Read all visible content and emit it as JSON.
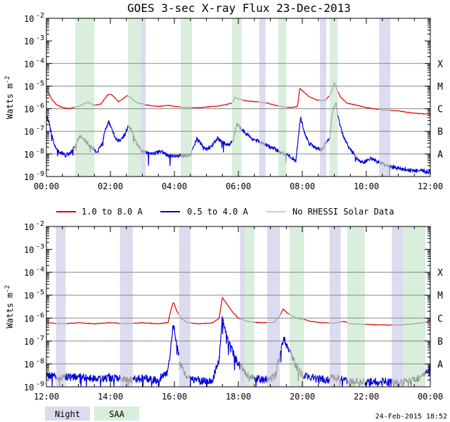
{
  "colors": {
    "long": "#dd0000",
    "short": "#0000dd",
    "norhessi": "#999999",
    "night": "#dcdcef",
    "saa": "#d9eedc",
    "grid": "#888888"
  },
  "chart_data": {
    "type": "line",
    "title": "GOES 3-sec X-ray Flux   23-Dec-2013",
    "ylabel": "Watts m",
    "ylabel_exp": "-2",
    "yscale": "log",
    "ylim_exp": [
      -9,
      -2
    ],
    "ytick_labels": [
      {
        "exp": -2,
        "text": "10",
        "sup": "-2"
      },
      {
        "exp": -3,
        "text": "10",
        "sup": "-3"
      },
      {
        "exp": -4,
        "text": "10",
        "sup": "-4"
      },
      {
        "exp": -5,
        "text": "10",
        "sup": "-5"
      },
      {
        "exp": -6,
        "text": "10",
        "sup": "-6"
      },
      {
        "exp": -7,
        "text": "10",
        "sup": "-7"
      },
      {
        "exp": -8,
        "text": "10",
        "sup": "-8"
      },
      {
        "exp": -9,
        "text": "10",
        "sup": "-9"
      }
    ],
    "flare_classes": [
      {
        "label": "X",
        "exp": -4
      },
      {
        "label": "M",
        "exp": -5
      },
      {
        "label": "C",
        "exp": -6
      },
      {
        "label": "B",
        "exp": -7
      },
      {
        "label": "A",
        "exp": -8
      }
    ],
    "legend": [
      {
        "key": "long",
        "label": "1.0 to 8.0 A"
      },
      {
        "key": "short",
        "label": "0.5 to 4.0 A"
      },
      {
        "key": "norhessi",
        "label": "No RHESSI Solar Data"
      }
    ],
    "bottom_legend": [
      {
        "key": "night",
        "label": "Night"
      },
      {
        "key": "saa",
        "label": "SAA"
      }
    ],
    "footer": "24-Feb-2015 18:52",
    "panels": [
      {
        "x_range_h": [
          0,
          12
        ],
        "xtick_labels": [
          "00:00",
          "02:00",
          "04:00",
          "06:00",
          "08:00",
          "10:00",
          "12:00"
        ],
        "night": [
          [
            1.07,
            1.27
          ],
          [
            2.9,
            3.1
          ],
          [
            6.65,
            6.85
          ],
          [
            8.55,
            8.75
          ],
          [
            10.4,
            10.75
          ]
        ],
        "saa": [
          [
            0.9,
            1.5
          ],
          [
            2.55,
            2.95
          ],
          [
            4.2,
            4.55
          ],
          [
            5.8,
            6.1
          ],
          [
            7.25,
            7.5
          ],
          [
            8.85,
            9.1
          ]
        ],
        "long_series": [
          [
            0.0,
            -5.2
          ],
          [
            0.08,
            -5.3
          ],
          [
            0.15,
            -5.55
          ],
          [
            0.3,
            -5.8
          ],
          [
            0.5,
            -5.95
          ],
          [
            0.7,
            -6.0
          ],
          [
            1.0,
            -5.9
          ],
          [
            1.3,
            -5.7
          ],
          [
            1.5,
            -5.85
          ],
          [
            1.7,
            -5.8
          ],
          [
            1.8,
            -5.6
          ],
          [
            1.9,
            -5.4
          ],
          [
            2.0,
            -5.35
          ],
          [
            2.1,
            -5.45
          ],
          [
            2.25,
            -5.7
          ],
          [
            2.45,
            -5.5
          ],
          [
            2.55,
            -5.4
          ],
          [
            2.7,
            -5.6
          ],
          [
            2.85,
            -5.75
          ],
          [
            3.2,
            -5.85
          ],
          [
            3.5,
            -5.9
          ],
          [
            3.8,
            -5.85
          ],
          [
            4.0,
            -5.9
          ],
          [
            4.4,
            -5.95
          ],
          [
            4.8,
            -5.95
          ],
          [
            5.2,
            -5.9
          ],
          [
            5.5,
            -5.85
          ],
          [
            5.8,
            -5.75
          ],
          [
            5.9,
            -5.5
          ],
          [
            6.0,
            -5.55
          ],
          [
            6.2,
            -5.65
          ],
          [
            6.6,
            -5.7
          ],
          [
            6.9,
            -5.75
          ],
          [
            7.3,
            -5.9
          ],
          [
            7.6,
            -5.95
          ],
          [
            7.85,
            -5.9
          ],
          [
            7.92,
            -5.1
          ],
          [
            8.0,
            -5.2
          ],
          [
            8.2,
            -5.45
          ],
          [
            8.4,
            -5.6
          ],
          [
            8.6,
            -5.65
          ],
          [
            8.75,
            -5.6
          ],
          [
            8.9,
            -5.3
          ],
          [
            9.0,
            -4.85
          ],
          [
            9.1,
            -5.2
          ],
          [
            9.2,
            -5.5
          ],
          [
            9.4,
            -5.75
          ],
          [
            9.7,
            -5.85
          ],
          [
            10.0,
            -5.95
          ],
          [
            10.5,
            -6.05
          ],
          [
            11.0,
            -6.1
          ],
          [
            11.5,
            -6.2
          ],
          [
            12.0,
            -6.25
          ]
        ],
        "short_series": [
          [
            0.0,
            -6.3
          ],
          [
            0.08,
            -6.6
          ],
          [
            0.15,
            -7.1
          ],
          [
            0.25,
            -7.6
          ],
          [
            0.4,
            -7.9
          ],
          [
            0.6,
            -8.05
          ],
          [
            0.8,
            -7.9
          ],
          [
            0.95,
            -7.5
          ],
          [
            1.05,
            -7.2
          ],
          [
            1.2,
            -7.4
          ],
          [
            1.4,
            -7.7
          ],
          [
            1.6,
            -7.9
          ],
          [
            1.75,
            -7.5
          ],
          [
            1.85,
            -6.9
          ],
          [
            1.95,
            -6.6
          ],
          [
            2.05,
            -6.9
          ],
          [
            2.2,
            -7.4
          ],
          [
            2.4,
            -7.3
          ],
          [
            2.55,
            -6.8
          ],
          [
            2.65,
            -6.95
          ],
          [
            2.8,
            -7.5
          ],
          [
            3.0,
            -7.9
          ],
          [
            3.3,
            -8.0
          ],
          [
            3.6,
            -7.9
          ],
          [
            3.8,
            -8.05
          ],
          [
            4.1,
            -8.1
          ],
          [
            4.5,
            -8.05
          ],
          [
            4.6,
            -7.7
          ],
          [
            4.7,
            -7.3
          ],
          [
            4.85,
            -7.6
          ],
          [
            5.0,
            -7.8
          ],
          [
            5.2,
            -7.6
          ],
          [
            5.35,
            -7.3
          ],
          [
            5.5,
            -7.5
          ],
          [
            5.7,
            -7.6
          ],
          [
            5.85,
            -7.35
          ],
          [
            5.95,
            -6.7
          ],
          [
            6.1,
            -6.9
          ],
          [
            6.4,
            -7.3
          ],
          [
            6.7,
            -7.5
          ],
          [
            7.0,
            -7.7
          ],
          [
            7.3,
            -7.9
          ],
          [
            7.6,
            -8.1
          ],
          [
            7.8,
            -8.3
          ],
          [
            7.9,
            -6.9
          ],
          [
            7.95,
            -6.4
          ],
          [
            8.05,
            -7.0
          ],
          [
            8.2,
            -7.5
          ],
          [
            8.4,
            -7.7
          ],
          [
            8.6,
            -7.8
          ],
          [
            8.85,
            -7.3
          ],
          [
            8.95,
            -6.1
          ],
          [
            9.05,
            -5.75
          ],
          [
            9.15,
            -6.6
          ],
          [
            9.3,
            -7.3
          ],
          [
            9.5,
            -7.8
          ],
          [
            9.7,
            -8.2
          ],
          [
            9.9,
            -8.4
          ],
          [
            10.1,
            -8.2
          ],
          [
            10.3,
            -8.3
          ],
          [
            10.6,
            -8.5
          ],
          [
            11.0,
            -8.65
          ],
          [
            11.3,
            -8.7
          ],
          [
            11.6,
            -8.75
          ],
          [
            12.0,
            -8.8
          ]
        ]
      },
      {
        "x_range_h": [
          12,
          24
        ],
        "xtick_labels": [
          "12:00",
          "14:00",
          "16:00",
          "18:00",
          "20:00",
          "22:00",
          "00:00"
        ],
        "night": [
          [
            12.3,
            12.6
          ],
          [
            14.3,
            14.7
          ],
          [
            16.15,
            16.5
          ],
          [
            18.05,
            18.5
          ],
          [
            18.9,
            19.3
          ],
          [
            20.85,
            21.2
          ],
          [
            22.8,
            23.15
          ]
        ],
        "saa": [
          [
            18.2,
            18.5
          ],
          [
            19.6,
            20.05
          ],
          [
            21.4,
            21.95
          ],
          [
            23.15,
            23.85
          ]
        ],
        "long_series": [
          [
            12.0,
            -6.2
          ],
          [
            12.5,
            -6.25
          ],
          [
            13.0,
            -6.2
          ],
          [
            13.5,
            -6.25
          ],
          [
            14.0,
            -6.2
          ],
          [
            14.5,
            -6.25
          ],
          [
            15.0,
            -6.2
          ],
          [
            15.5,
            -6.25
          ],
          [
            15.8,
            -6.2
          ],
          [
            15.9,
            -5.6
          ],
          [
            15.97,
            -5.3
          ],
          [
            16.05,
            -5.6
          ],
          [
            16.2,
            -6.0
          ],
          [
            16.4,
            -6.2
          ],
          [
            16.8,
            -6.25
          ],
          [
            17.2,
            -6.2
          ],
          [
            17.4,
            -6.0
          ],
          [
            17.5,
            -5.1
          ],
          [
            17.6,
            -5.3
          ],
          [
            17.8,
            -5.7
          ],
          [
            18.0,
            -6.0
          ],
          [
            18.3,
            -6.15
          ],
          [
            18.7,
            -6.2
          ],
          [
            19.1,
            -6.2
          ],
          [
            19.3,
            -5.9
          ],
          [
            19.4,
            -5.6
          ],
          [
            19.55,
            -5.8
          ],
          [
            19.8,
            -6.0
          ],
          [
            20.0,
            -6.05
          ],
          [
            20.3,
            -6.15
          ],
          [
            20.6,
            -6.2
          ],
          [
            21.0,
            -6.22
          ],
          [
            21.3,
            -6.15
          ],
          [
            21.5,
            -6.25
          ],
          [
            22.0,
            -6.28
          ],
          [
            22.5,
            -6.3
          ],
          [
            23.0,
            -6.3
          ],
          [
            23.5,
            -6.25
          ],
          [
            24.0,
            -6.15
          ]
        ],
        "short_series": [
          [
            12.0,
            -8.5
          ],
          [
            12.5,
            -8.6
          ],
          [
            13.0,
            -8.55
          ],
          [
            13.5,
            -8.65
          ],
          [
            14.0,
            -8.6
          ],
          [
            14.5,
            -8.7
          ],
          [
            15.0,
            -8.65
          ],
          [
            15.5,
            -8.7
          ],
          [
            15.8,
            -8.3
          ],
          [
            15.9,
            -7.2
          ],
          [
            15.97,
            -6.2
          ],
          [
            16.05,
            -7.0
          ],
          [
            16.2,
            -8.0
          ],
          [
            16.4,
            -8.6
          ],
          [
            16.8,
            -8.75
          ],
          [
            17.2,
            -8.7
          ],
          [
            17.4,
            -7.8
          ],
          [
            17.5,
            -6.0
          ],
          [
            17.6,
            -6.6
          ],
          [
            17.8,
            -7.4
          ],
          [
            18.0,
            -8.0
          ],
          [
            18.3,
            -8.5
          ],
          [
            18.7,
            -8.7
          ],
          [
            19.1,
            -8.6
          ],
          [
            19.3,
            -7.6
          ],
          [
            19.42,
            -6.9
          ],
          [
            19.6,
            -7.4
          ],
          [
            19.8,
            -8.1
          ],
          [
            20.0,
            -8.5
          ],
          [
            20.3,
            -8.6
          ],
          [
            20.7,
            -8.7
          ],
          [
            21.0,
            -8.6
          ],
          [
            21.5,
            -8.75
          ],
          [
            22.0,
            -8.8
          ],
          [
            22.5,
            -8.75
          ],
          [
            23.0,
            -8.85
          ],
          [
            23.5,
            -8.7
          ],
          [
            23.8,
            -8.5
          ],
          [
            24.0,
            -8.2
          ]
        ]
      }
    ]
  }
}
